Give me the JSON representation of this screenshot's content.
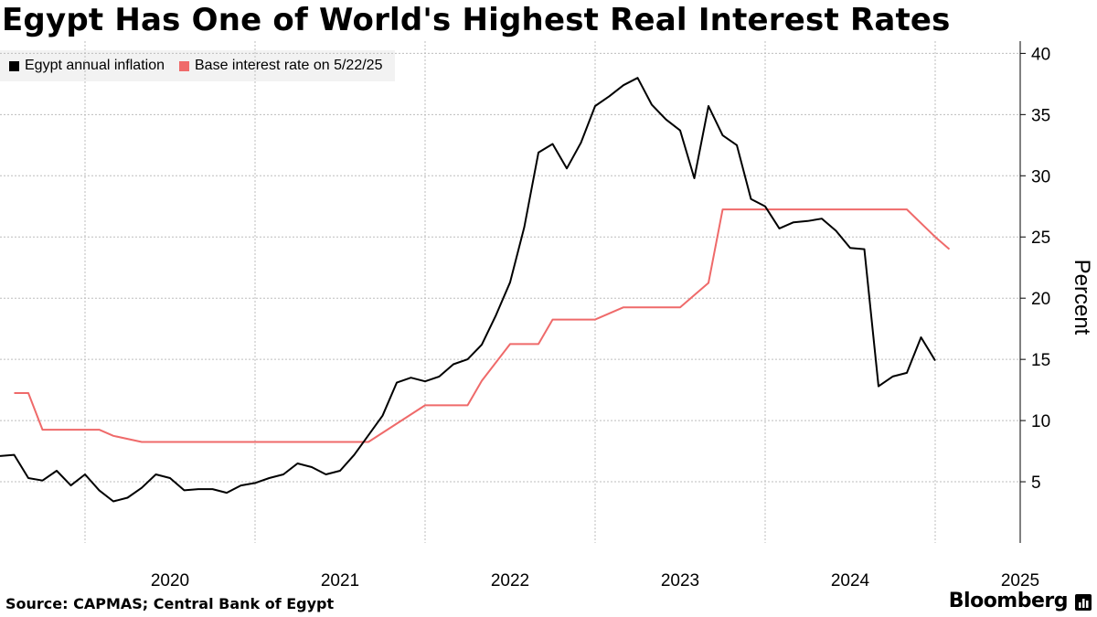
{
  "chart_data": {
    "type": "line",
    "title": "Egypt Has One of World's Highest Real Interest Rates",
    "ylabel": "Percent",
    "xlabel": "",
    "ylim": [
      0,
      41
    ],
    "yticks": [
      5,
      10,
      15,
      20,
      25,
      30,
      35,
      40
    ],
    "xlim": [
      "2019-07",
      "2025-07"
    ],
    "xticks": [
      {
        "label": "2020",
        "date": "2020-01"
      },
      {
        "label": "2021",
        "date": "2021-01"
      },
      {
        "label": "2022",
        "date": "2022-01"
      },
      {
        "label": "2023",
        "date": "2023-01"
      },
      {
        "label": "2024",
        "date": "2024-01"
      },
      {
        "label": "2025",
        "date": "2025-01"
      }
    ],
    "grid": true,
    "legend_position": "top-left",
    "series": [
      {
        "name": "Egypt annual inflation",
        "color": "#000000",
        "points": [
          [
            "2019-07",
            7.1
          ],
          [
            "2019-08",
            7.2
          ],
          [
            "2019-09",
            5.3
          ],
          [
            "2019-10",
            5.1
          ],
          [
            "2019-11",
            5.9
          ],
          [
            "2019-12",
            4.7
          ],
          [
            "2020-01",
            5.6
          ],
          [
            "2020-02",
            4.3
          ],
          [
            "2020-03",
            3.4
          ],
          [
            "2020-04",
            3.7
          ],
          [
            "2020-05",
            4.5
          ],
          [
            "2020-06",
            5.6
          ],
          [
            "2020-07",
            5.3
          ],
          [
            "2020-08",
            4.3
          ],
          [
            "2020-09",
            4.4
          ],
          [
            "2020-10",
            4.4
          ],
          [
            "2020-11",
            4.1
          ],
          [
            "2020-12",
            4.7
          ],
          [
            "2021-01",
            4.9
          ],
          [
            "2021-02",
            5.3
          ],
          [
            "2021-03",
            5.6
          ],
          [
            "2021-04",
            6.5
          ],
          [
            "2021-05",
            6.2
          ],
          [
            "2021-06",
            5.6
          ],
          [
            "2021-07",
            5.9
          ],
          [
            "2021-08",
            7.2
          ],
          [
            "2021-09",
            8.8
          ],
          [
            "2021-10",
            10.4
          ],
          [
            "2021-11",
            13.1
          ],
          [
            "2021-12",
            13.5
          ],
          [
            "2022-01",
            13.2
          ],
          [
            "2022-02",
            13.6
          ],
          [
            "2022-03",
            14.6
          ],
          [
            "2022-04",
            15.0
          ],
          [
            "2022-05",
            16.2
          ],
          [
            "2022-06",
            18.6
          ],
          [
            "2022-07",
            21.3
          ],
          [
            "2022-08",
            25.8
          ],
          [
            "2022-09",
            31.9
          ],
          [
            "2022-10",
            32.6
          ],
          [
            "2022-11",
            30.6
          ],
          [
            "2022-12",
            32.7
          ],
          [
            "2023-01",
            35.7
          ],
          [
            "2023-02",
            36.5
          ],
          [
            "2023-03",
            37.4
          ],
          [
            "2023-04",
            38.0
          ],
          [
            "2023-05",
            35.8
          ],
          [
            "2023-06",
            34.6
          ],
          [
            "2023-07",
            33.7
          ],
          [
            "2023-08",
            29.8
          ],
          [
            "2023-09",
            35.7
          ],
          [
            "2023-10",
            33.3
          ],
          [
            "2023-11",
            32.5
          ],
          [
            "2023-12",
            28.1
          ],
          [
            "2024-01",
            27.5
          ],
          [
            "2024-02",
            25.7
          ],
          [
            "2024-03",
            26.2
          ],
          [
            "2024-04",
            26.3
          ],
          [
            "2024-05",
            26.5
          ],
          [
            "2024-06",
            25.5
          ],
          [
            "2024-07",
            24.1
          ],
          [
            "2024-08",
            24.0
          ],
          [
            "2024-09",
            12.8
          ],
          [
            "2024-10",
            13.6
          ],
          [
            "2024-11",
            13.9
          ],
          [
            "2024-12",
            16.8
          ],
          [
            "2025-01",
            14.9
          ]
        ]
      },
      {
        "name": "Base interest rate on 5/22/25",
        "color": "#ef6a6a",
        "points": [
          [
            "2019-08",
            12.25
          ],
          [
            "2019-09",
            12.25
          ],
          [
            "2019-10",
            9.25
          ],
          [
            "2020-02",
            9.25
          ],
          [
            "2020-03",
            8.75
          ],
          [
            "2020-05",
            8.25
          ],
          [
            "2021-09",
            8.25
          ],
          [
            "2022-01",
            11.25
          ],
          [
            "2022-04",
            11.25
          ],
          [
            "2022-05",
            13.25
          ],
          [
            "2022-07",
            16.25
          ],
          [
            "2022-09",
            16.25
          ],
          [
            "2022-10",
            18.25
          ],
          [
            "2023-01",
            18.25
          ],
          [
            "2023-03",
            19.25
          ],
          [
            "2023-07",
            19.25
          ],
          [
            "2023-09",
            21.25
          ],
          [
            "2023-10",
            27.25
          ],
          [
            "2024-11",
            27.25
          ],
          [
            "2025-01",
            25.0
          ],
          [
            "2025-02",
            24.0
          ]
        ]
      }
    ]
  },
  "footer": {
    "source": "Source: CAPMAS; Central Bank of Egypt",
    "brand": "Bloomberg"
  }
}
